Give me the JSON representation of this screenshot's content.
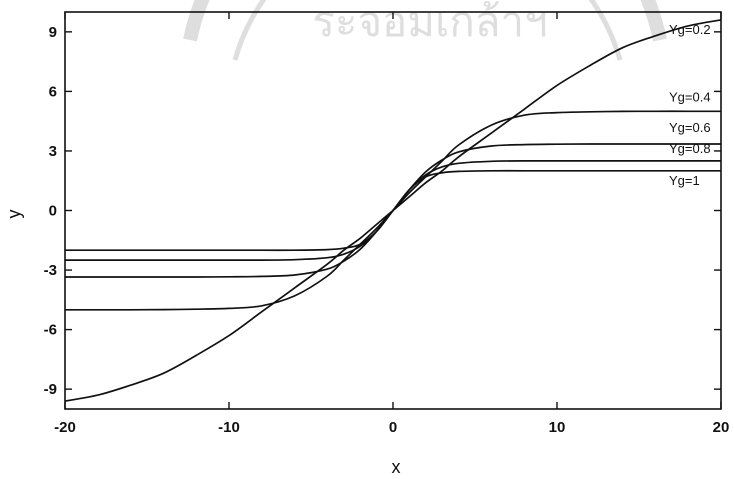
{
  "chart_data": {
    "type": "line",
    "title": "",
    "xlabel": "x",
    "ylabel": "y",
    "xlim": [
      -20,
      20
    ],
    "ylim": [
      -10,
      10
    ],
    "grid": false,
    "xticks": [
      -20,
      -10,
      0,
      10,
      20
    ],
    "xtick_labels": [
      "-20",
      "-10",
      "0",
      "10",
      "20"
    ],
    "yticks": [
      9,
      6,
      3,
      0,
      -3,
      -6,
      -9
    ],
    "ytick_labels": [
      "9",
      "6",
      "3",
      "0",
      "-3",
      "-6",
      "-9"
    ],
    "line_color": "#111111",
    "watermark_text": "ระจอมเกล้าฯ",
    "x": [
      -20,
      -18,
      -16,
      -14,
      -12,
      -10,
      -8,
      -6,
      -4,
      -3,
      -2,
      -1,
      0,
      1,
      2,
      3,
      4,
      6,
      8,
      10,
      12,
      14,
      16,
      18,
      20
    ],
    "series": [
      {
        "name": "Yg=0.2",
        "values": [
          -9.6,
          -9.3,
          -8.8,
          -8.2,
          -7.3,
          -6.3,
          -5.1,
          -3.9,
          -2.7,
          -2.0,
          -1.4,
          -0.7,
          0.0,
          0.7,
          1.4,
          2.0,
          2.7,
          3.9,
          5.1,
          6.3,
          7.3,
          8.2,
          8.8,
          9.3,
          9.6
        ]
      },
      {
        "name": "Yg=0.4",
        "values": [
          -5.0,
          -5.0,
          -5.0,
          -4.99,
          -4.97,
          -4.93,
          -4.8,
          -4.3,
          -3.3,
          -2.5,
          -1.7,
          -0.9,
          0.0,
          0.9,
          1.7,
          2.5,
          3.3,
          4.3,
          4.8,
          4.93,
          4.97,
          4.99,
          5.0,
          5.0,
          5.0
        ]
      },
      {
        "name": "Yg=0.6",
        "values": [
          -3.35,
          -3.35,
          -3.35,
          -3.35,
          -3.35,
          -3.34,
          -3.32,
          -3.25,
          -2.95,
          -2.55,
          -1.95,
          -1.05,
          0.0,
          1.05,
          1.95,
          2.55,
          2.95,
          3.25,
          3.32,
          3.34,
          3.35,
          3.35,
          3.35,
          3.35,
          3.35
        ]
      },
      {
        "name": "Yg=0.8",
        "values": [
          -2.5,
          -2.5,
          -2.5,
          -2.5,
          -2.5,
          -2.5,
          -2.5,
          -2.48,
          -2.38,
          -2.2,
          -1.8,
          -1.05,
          0.0,
          1.05,
          1.8,
          2.2,
          2.38,
          2.48,
          2.5,
          2.5,
          2.5,
          2.5,
          2.5,
          2.5,
          2.5
        ]
      },
      {
        "name": "Yg=1",
        "values": [
          -2.0,
          -2.0,
          -2.0,
          -2.0,
          -2.0,
          -2.0,
          -2.0,
          -2.0,
          -1.97,
          -1.9,
          -1.7,
          -1.05,
          0.0,
          1.05,
          1.7,
          1.9,
          1.97,
          2.0,
          2.0,
          2.0,
          2.0,
          2.0,
          2.0,
          2.0,
          2.0
        ]
      }
    ]
  }
}
